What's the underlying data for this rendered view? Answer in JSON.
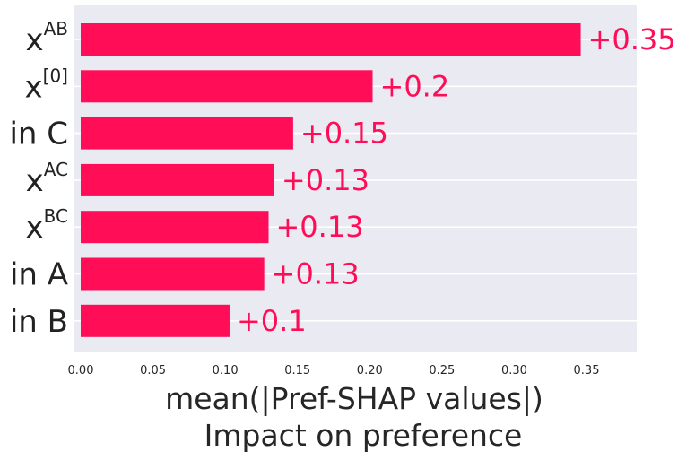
{
  "chart_data": {
    "type": "bar",
    "orientation": "horizontal",
    "categories": [
      {
        "base": "x",
        "sup": "AB"
      },
      {
        "base": "x",
        "sup": "[0]"
      },
      {
        "base": "in C",
        "sup": ""
      },
      {
        "base": "x",
        "sup": "AC"
      },
      {
        "base": "x",
        "sup": "BC"
      },
      {
        "base": "in A",
        "sup": ""
      },
      {
        "base": "in B",
        "sup": ""
      }
    ],
    "values": [
      0.346,
      0.202,
      0.147,
      0.134,
      0.13,
      0.127,
      0.103
    ],
    "data_labels": [
      "+0.35",
      "+0.2",
      "+0.15",
      "+0.13",
      "+0.13",
      "+0.13",
      "+0.1"
    ],
    "xlim": [
      0,
      0.38
    ],
    "xticks": [
      0.0,
      0.05,
      0.1,
      0.15,
      0.2,
      0.25,
      0.3,
      0.35
    ],
    "xtick_labels": [
      "0.00",
      "0.05",
      "0.10",
      "0.15",
      "0.20",
      "0.25",
      "0.30",
      "0.35"
    ],
    "xlabel": [
      "mean(|Pref-SHAP values|)",
      "Impact on preference"
    ],
    "ylabel": "",
    "title": "",
    "grid": true,
    "colors": {
      "bar": "#ff0d57",
      "label": "#ff0d57",
      "plot_background": "#eaeaf2",
      "grid": "#ffffff"
    }
  }
}
